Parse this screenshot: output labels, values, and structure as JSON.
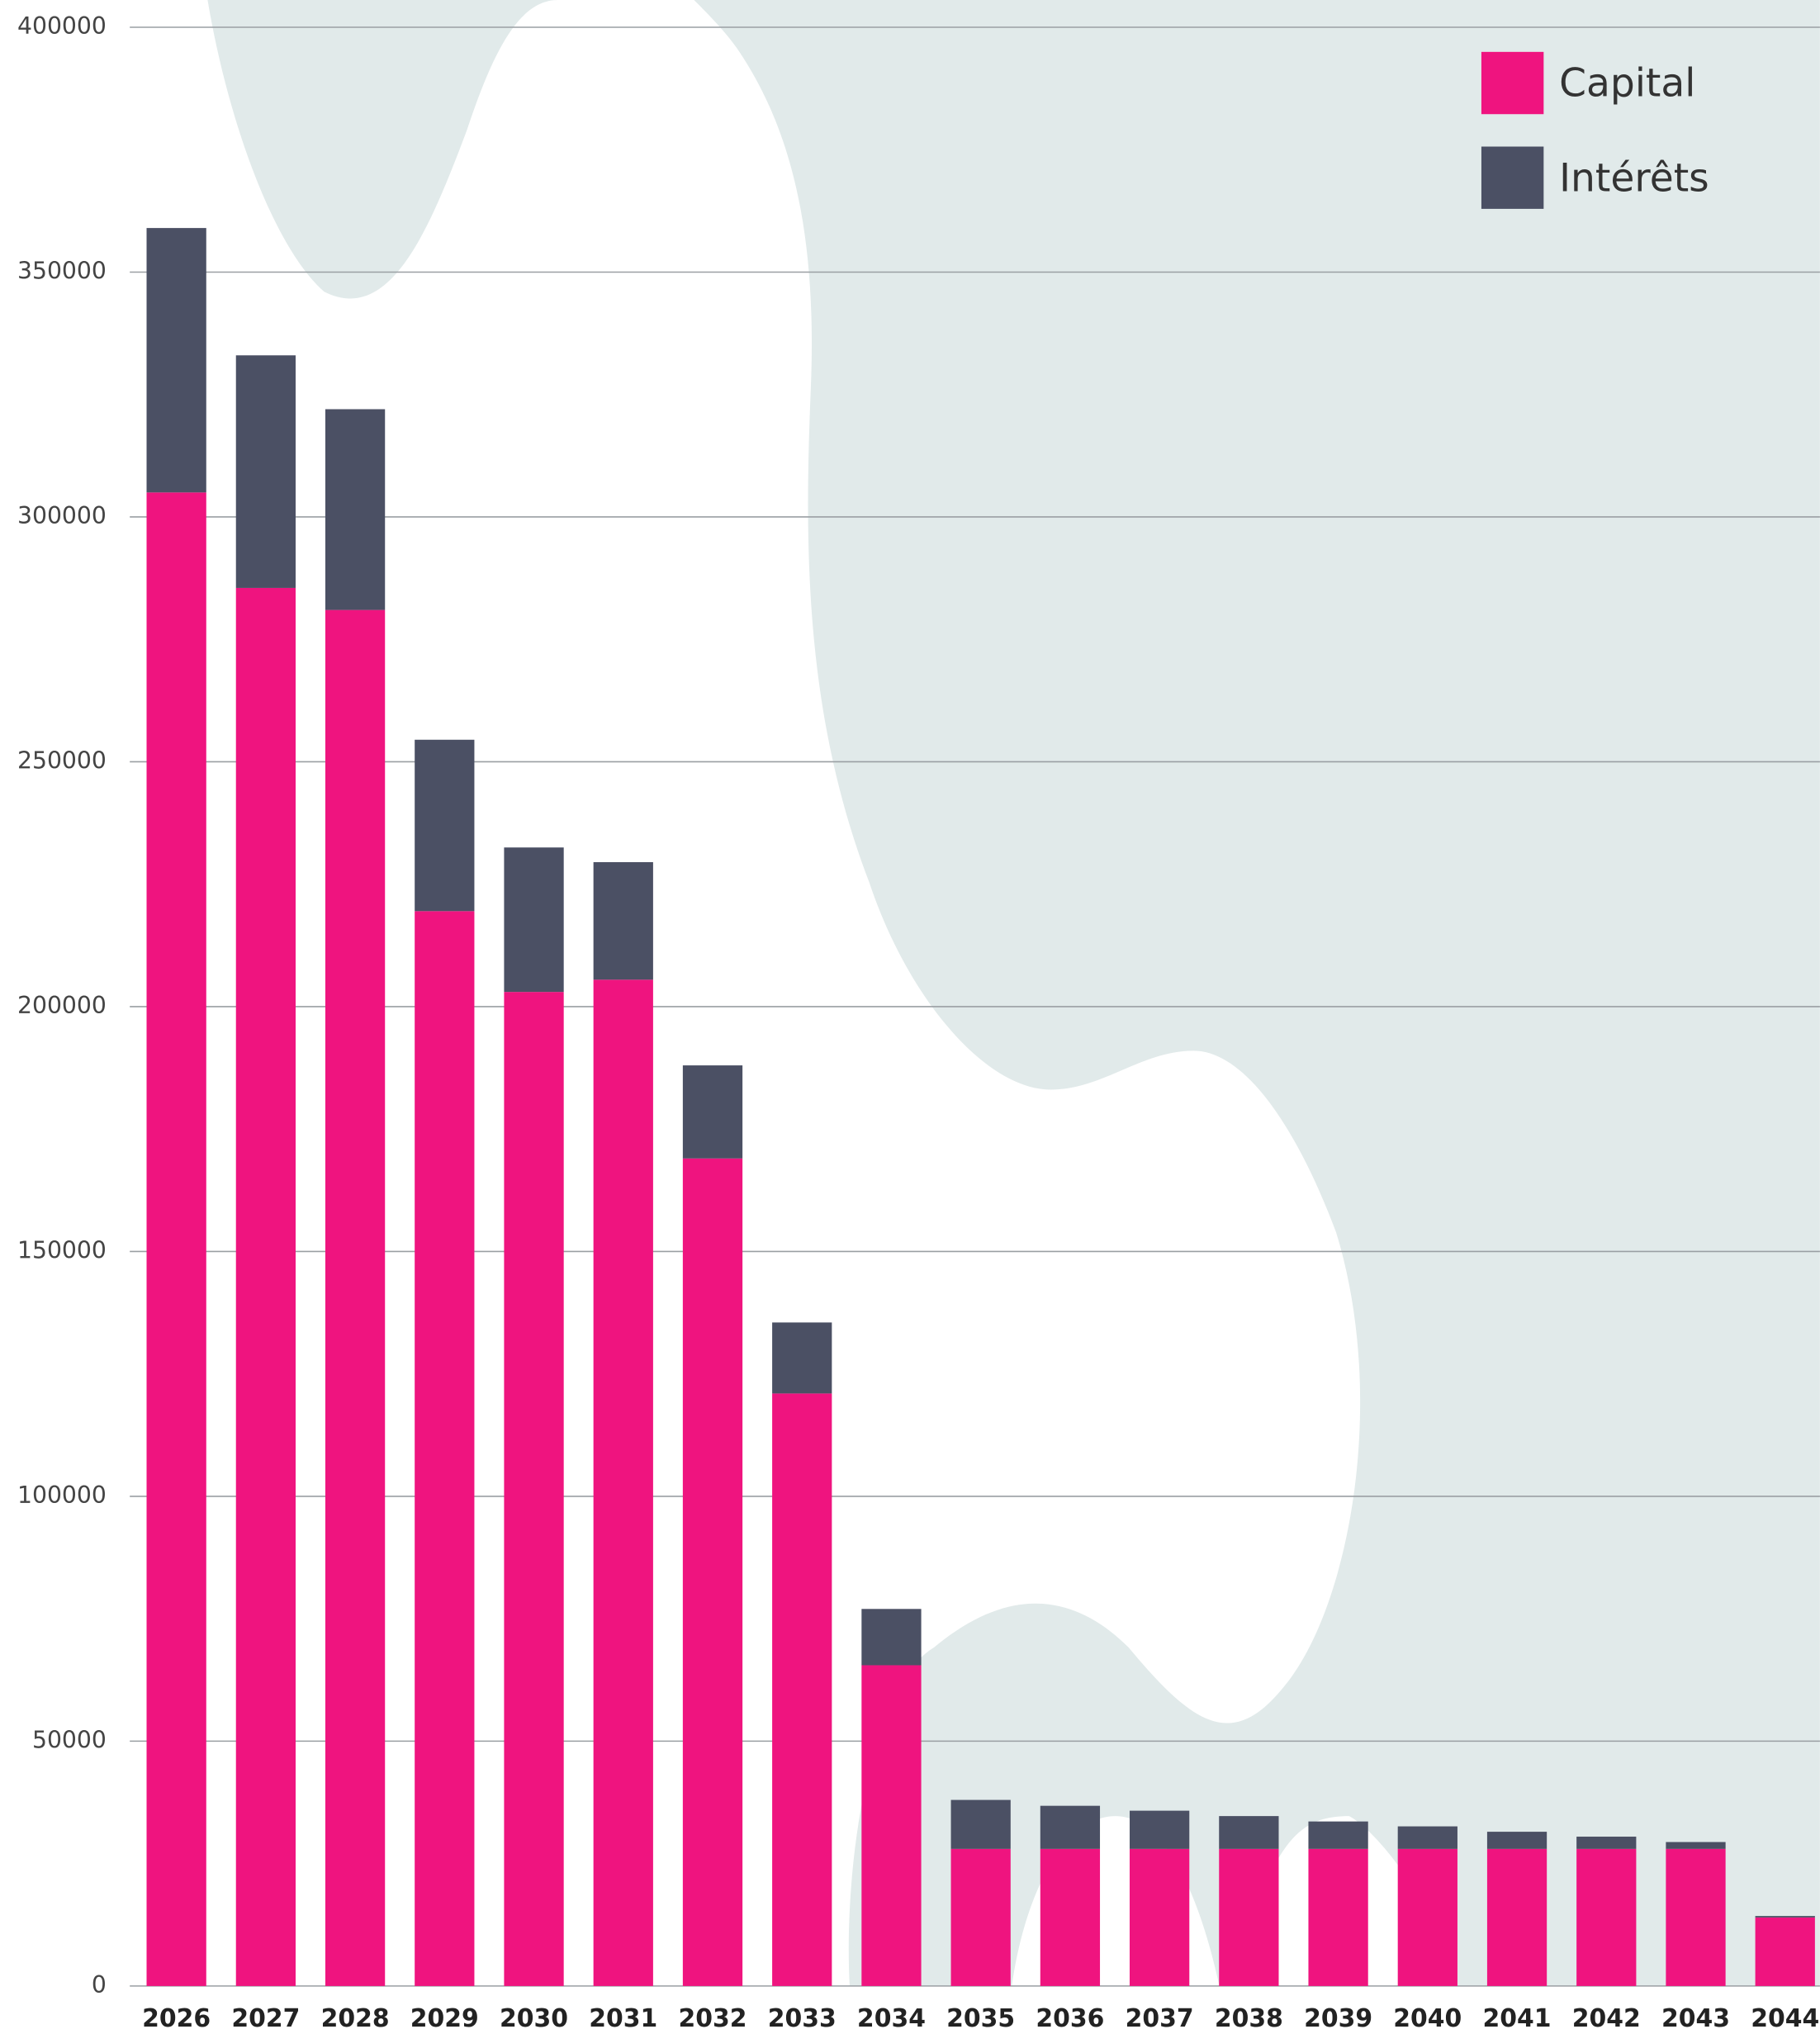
{
  "chart_data": {
    "type": "stacked-bar",
    "categories": [
      "2026",
      "2027",
      "2028",
      "2029",
      "2030",
      "2031",
      "2032",
      "2033",
      "2034",
      "2035",
      "2036",
      "2037",
      "2038",
      "2039",
      "2040",
      "2041",
      "2042",
      "2043",
      "2044"
    ],
    "series": [
      {
        "name": "Capital",
        "color": "#ef147f",
        "values": [
          305000,
          285500,
          281000,
          219500,
          203000,
          205500,
          169000,
          121000,
          65500,
          28000,
          28000,
          28000,
          28000,
          28000,
          28000,
          28000,
          28000,
          28000,
          14000
        ]
      },
      {
        "name": "Intérêts",
        "color": "#4b5064",
        "values": [
          54000,
          47500,
          41000,
          35000,
          29500,
          24000,
          19000,
          14500,
          11500,
          10000,
          8800,
          7800,
          6700,
          5600,
          4600,
          3500,
          2500,
          1400,
          300
        ]
      }
    ],
    "ylim": [
      0,
      400000
    ],
    "yticks": [
      0,
      50000,
      100000,
      150000,
      200000,
      250000,
      300000,
      350000,
      400000
    ],
    "grid": true,
    "legend": "top-right"
  }
}
